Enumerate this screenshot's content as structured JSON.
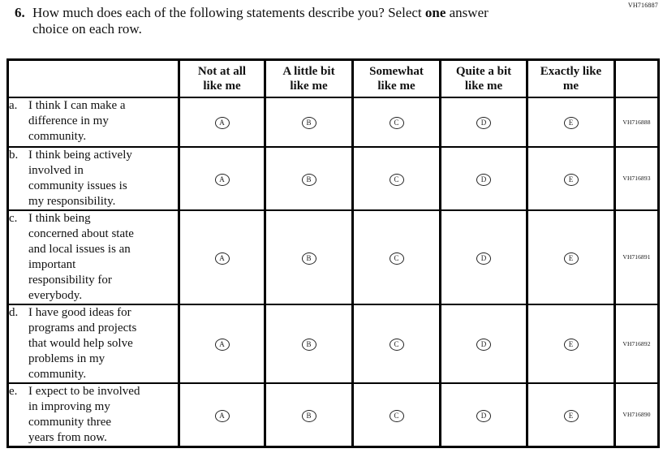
{
  "page_id": "VH716887",
  "question": {
    "number": "6.",
    "line1_prefix": "How much does each of the following statements describe you? Select ",
    "line1_bold": "one",
    "line1_suffix": " answer",
    "line2": "choice on each row."
  },
  "table": {
    "column_headers": [
      "Not at all\nlike me",
      "A little bit\nlike me",
      "Somewhat\nlike me",
      "Quite a bit\nlike me",
      "Exactly like\nme"
    ],
    "options": [
      "A",
      "B",
      "C",
      "D",
      "E"
    ],
    "rows": [
      {
        "label": "a.",
        "statement": "I think I can make a\ndifference in my\ncommunity.",
        "id": "VH716888"
      },
      {
        "label": "b.",
        "statement": "I think being actively\ninvolved in\ncommunity issues is\nmy responsibility.",
        "id": "VH716893"
      },
      {
        "label": "c.",
        "statement": "I think being\nconcerned about state\nand local issues is an\nimportant\nresponsibility for\neverybody.",
        "id": "VH716891"
      },
      {
        "label": "d.",
        "statement": "I have good ideas for\nprograms and projects\nthat would help solve\nproblems in my\ncommunity.",
        "id": "VH716892"
      },
      {
        "label": "e.",
        "statement": "I expect to be involved\nin improving my\ncommunity three\nyears from now.",
        "id": "VH716890"
      }
    ]
  }
}
